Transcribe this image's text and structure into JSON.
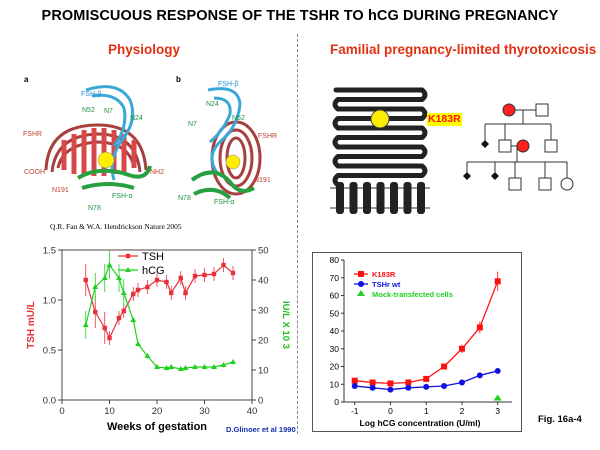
{
  "title": "PROMISCUOUS RESPONSE OF THE TSHR TO hCG DURING PREGNANCY",
  "left_heading": "Physiology",
  "right_heading": "Familial pregnancy-limited thyrotoxicosis",
  "structure_panel": {
    "panel_a": "a",
    "panel_b": "b",
    "labels_a": [
      "FSH-β",
      "N52",
      "N7",
      "N24",
      "FSHR",
      "COOH",
      "NH2",
      "N191",
      "N78",
      "FSH-α"
    ],
    "labels_b": [
      "FSH-β",
      "N24",
      "N7",
      "N52",
      "FSHR",
      "N191",
      "N78",
      "FSH-α"
    ],
    "citation": "Q.R. Fan & W.A. Hendrickson Nature 2005"
  },
  "mutation_label": "K183R",
  "credit": "D.Glinoer et al 1990",
  "fig_label": "Fig. 16a-4",
  "colors": {
    "title_red": "#e03010",
    "tsh": "#e8303a",
    "hcg": "#20d020",
    "k183r": "#ff1010",
    "wt": "#1010e0",
    "mutation_box": "#ffff00",
    "yellow": "#ffee00"
  },
  "chart_data": [
    {
      "type": "line",
      "title": "",
      "xlabel": "Weeks of gestation",
      "ylabel_left": "TSH mU/L",
      "ylabel_right": "IU/L X 10 3",
      "xlim": [
        0,
        40
      ],
      "ylim_left": [
        0,
        1.5
      ],
      "ylim_right": [
        0,
        50
      ],
      "x_ticks": [
        0,
        10,
        20,
        30,
        40
      ],
      "y_ticks_left": [
        "0.0",
        "0.5",
        "1.0",
        "1.5"
      ],
      "y_ticks_right": [
        0,
        10,
        20,
        30,
        40,
        50
      ],
      "legend": "top-center",
      "series": [
        {
          "name": "TSH",
          "axis": "left",
          "x": [
            5,
            7,
            9,
            10,
            12,
            13,
            15,
            16,
            18,
            20,
            22,
            23,
            25,
            26,
            28,
            30,
            32,
            34,
            36
          ],
          "values": [
            1.2,
            0.88,
            0.72,
            0.62,
            0.82,
            0.89,
            1.06,
            1.1,
            1.13,
            1.2,
            1.18,
            1.07,
            1.22,
            1.07,
            1.24,
            1.25,
            1.26,
            1.35,
            1.27
          ]
        },
        {
          "name": "hCG",
          "axis": "left",
          "x": [
            5,
            7,
            9,
            10,
            12,
            13,
            15,
            16,
            18,
            20,
            22,
            23,
            25,
            26,
            28,
            30,
            32,
            34,
            36
          ],
          "values": [
            0.75,
            1.13,
            1.22,
            1.35,
            1.22,
            1.07,
            0.8,
            0.56,
            0.44,
            0.33,
            0.32,
            0.33,
            0.31,
            0.32,
            0.33,
            0.33,
            0.33,
            0.35,
            0.38
          ]
        }
      ],
      "grid": false
    },
    {
      "type": "line",
      "title": "",
      "xlabel": "Log hCG concentration (U/ml)",
      "ylabel": "",
      "xlim": [
        -1.3,
        3.4
      ],
      "ylim": [
        0,
        80
      ],
      "x_ticks": [
        -1,
        0,
        1,
        2,
        3
      ],
      "y_ticks": [
        0,
        10,
        20,
        30,
        40,
        50,
        60,
        70,
        80
      ],
      "legend": "top-left",
      "grid": false,
      "series": [
        {
          "name": "K183R",
          "x": [
            -1,
            -0.5,
            0,
            0.5,
            1,
            1.5,
            2,
            2.5,
            3
          ],
          "values": [
            12,
            11,
            10.5,
            11,
            13,
            20,
            30,
            42,
            68
          ]
        },
        {
          "name": "TSHr wt",
          "x": [
            -1,
            -0.5,
            0,
            0.5,
            1,
            1.5,
            2,
            2.5,
            3
          ],
          "values": [
            9,
            8,
            7,
            8,
            8.5,
            9,
            11,
            15,
            17.5
          ]
        },
        {
          "name": "Mock-transfected cells",
          "x": [
            3
          ],
          "values": [
            2
          ]
        }
      ]
    }
  ]
}
